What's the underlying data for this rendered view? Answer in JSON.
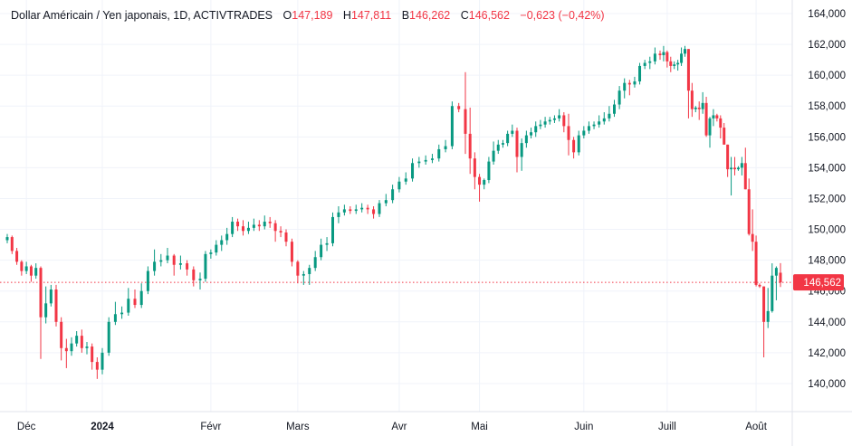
{
  "legend": {
    "symbol": "Dollar Américain / Yen japonais, 1D, ACTIVTRADES",
    "open_label": "O",
    "open": "147,189",
    "high_label": "H",
    "high": "147,811",
    "low_label": "B",
    "low": "146,262",
    "close_label": "C",
    "close": "146,562",
    "change": "−0,623 (−0,42%)"
  },
  "colors": {
    "up": "#089981",
    "down": "#f23645",
    "grid": "#f0f3fa",
    "text": "#131722"
  },
  "chart_data": {
    "type": "candlestick",
    "title": "Dollar Américain / Yen japonais, 1D, ACTIVTRADES",
    "ylim": [
      139,
      164.5
    ],
    "y_ticks": [
      "164,000",
      "162,000",
      "160,000",
      "158,000",
      "156,000",
      "154,000",
      "152,000",
      "150,000",
      "148,000",
      "146,000",
      "144,000",
      "142,000",
      "140,000"
    ],
    "y_tick_values": [
      164,
      162,
      160,
      158,
      156,
      154,
      152,
      150,
      148,
      146,
      144,
      142,
      140
    ],
    "x_ticks": [
      "Déc",
      "2024",
      "Févr",
      "Mars",
      "Avr",
      "Mai",
      "Juin",
      "Juill",
      "Août"
    ],
    "x_tick_bold": [
      false,
      true,
      false,
      false,
      false,
      false,
      false,
      false,
      false
    ],
    "grid": true,
    "last_price": 146.562,
    "last_price_label": "146,562",
    "candles_ohlc": [
      [
        149.3,
        149.7,
        149.1,
        149.5
      ],
      [
        149.5,
        149.6,
        148.4,
        148.6
      ],
      [
        148.6,
        148.8,
        147.7,
        147.9
      ],
      [
        147.9,
        148.0,
        147.0,
        147.3
      ],
      [
        147.3,
        147.9,
        147.1,
        147.6
      ],
      [
        147.6,
        147.7,
        146.6,
        147.0
      ],
      [
        147.0,
        147.8,
        146.8,
        147.5
      ],
      [
        147.5,
        147.6,
        141.6,
        144.3
      ],
      [
        144.3,
        146.3,
        143.9,
        145.2
      ],
      [
        145.2,
        146.4,
        145.0,
        146.1
      ],
      [
        146.1,
        146.4,
        143.7,
        144.0
      ],
      [
        144.0,
        144.3,
        141.5,
        142.3
      ],
      [
        142.3,
        142.9,
        141.0,
        142.1
      ],
      [
        142.1,
        143.0,
        141.8,
        142.6
      ],
      [
        142.6,
        143.4,
        142.4,
        143.1
      ],
      [
        143.1,
        143.5,
        142.0,
        142.3
      ],
      [
        142.3,
        142.7,
        141.9,
        142.4
      ],
      [
        142.4,
        142.6,
        140.9,
        141.4
      ],
      [
        141.4,
        141.7,
        140.3,
        140.9
      ],
      [
        140.9,
        142.3,
        140.6,
        142.0
      ],
      [
        142.0,
        144.3,
        141.8,
        144.0
      ],
      [
        144.0,
        145.3,
        143.8,
        144.5
      ],
      [
        144.5,
        145.0,
        144.2,
        144.6
      ],
      [
        144.6,
        146.2,
        144.4,
        145.5
      ],
      [
        145.5,
        146.1,
        144.9,
        145.1
      ],
      [
        145.1,
        146.5,
        144.9,
        146.0
      ],
      [
        146.0,
        147.6,
        145.8,
        147.3
      ],
      [
        147.3,
        148.7,
        147.0,
        147.9
      ],
      [
        147.9,
        148.4,
        147.6,
        148.0
      ],
      [
        148.0,
        148.8,
        147.8,
        148.3
      ],
      [
        148.3,
        148.4,
        147.0,
        147.7
      ],
      [
        147.7,
        148.3,
        147.4,
        147.8
      ],
      [
        147.8,
        148.0,
        147.0,
        147.4
      ],
      [
        147.4,
        147.6,
        146.3,
        146.7
      ],
      [
        146.7,
        147.2,
        146.1,
        146.8
      ],
      [
        146.8,
        148.6,
        146.6,
        148.4
      ],
      [
        148.4,
        148.7,
        148.1,
        148.5
      ],
      [
        148.5,
        149.3,
        148.3,
        149.0
      ],
      [
        149.0,
        149.6,
        148.6,
        149.3
      ],
      [
        149.3,
        150.1,
        149.0,
        149.7
      ],
      [
        149.7,
        150.8,
        149.5,
        150.5
      ],
      [
        150.5,
        150.7,
        149.9,
        150.2
      ],
      [
        150.2,
        150.6,
        149.6,
        149.9
      ],
      [
        149.9,
        150.5,
        149.7,
        150.1
      ],
      [
        150.1,
        150.7,
        149.9,
        150.3
      ],
      [
        150.3,
        150.6,
        149.9,
        150.2
      ],
      [
        150.2,
        150.9,
        150.0,
        150.5
      ],
      [
        150.5,
        150.8,
        150.1,
        150.4
      ],
      [
        150.4,
        150.6,
        149.2,
        149.9
      ],
      [
        149.9,
        150.2,
        149.5,
        149.8
      ],
      [
        149.8,
        150.0,
        148.9,
        149.2
      ],
      [
        149.2,
        149.4,
        147.6,
        147.9
      ],
      [
        147.9,
        148.0,
        146.5,
        147.0
      ],
      [
        147.0,
        147.3,
        146.4,
        147.1
      ],
      [
        147.1,
        147.7,
        146.4,
        147.5
      ],
      [
        147.5,
        148.6,
        147.3,
        148.2
      ],
      [
        148.2,
        149.4,
        148.0,
        149.0
      ],
      [
        149.0,
        149.5,
        148.6,
        149.1
      ],
      [
        149.1,
        151.1,
        148.9,
        150.8
      ],
      [
        150.8,
        151.5,
        150.4,
        151.1
      ],
      [
        151.1,
        151.6,
        150.9,
        151.3
      ],
      [
        151.3,
        151.5,
        151.0,
        151.2
      ],
      [
        151.2,
        151.6,
        151.0,
        151.3
      ],
      [
        151.3,
        151.7,
        151.1,
        151.4
      ],
      [
        151.4,
        151.6,
        151.0,
        151.3
      ],
      [
        151.3,
        151.5,
        150.7,
        151.0
      ],
      [
        151.0,
        151.9,
        150.8,
        151.7
      ],
      [
        151.7,
        152.3,
        151.5,
        151.9
      ],
      [
        151.9,
        152.9,
        151.7,
        152.6
      ],
      [
        152.6,
        153.4,
        152.4,
        153.1
      ],
      [
        153.1,
        153.7,
        152.9,
        153.3
      ],
      [
        153.3,
        154.6,
        153.1,
        154.3
      ],
      [
        154.3,
        154.7,
        154.0,
        154.4
      ],
      [
        154.4,
        154.8,
        154.2,
        154.5
      ],
      [
        154.5,
        154.9,
        154.3,
        154.6
      ],
      [
        154.6,
        155.5,
        154.4,
        155.2
      ],
      [
        155.2,
        155.8,
        155.0,
        155.4
      ],
      [
        155.4,
        158.3,
        155.2,
        158.0
      ],
      [
        158.0,
        158.2,
        157.6,
        157.8
      ],
      [
        157.8,
        160.2,
        154.9,
        156.2
      ],
      [
        156.2,
        157.9,
        153.6,
        154.6
      ],
      [
        154.6,
        155.0,
        152.6,
        153.4
      ],
      [
        153.4,
        153.6,
        151.8,
        152.9
      ],
      [
        152.9,
        153.3,
        152.6,
        153.2
      ],
      [
        153.2,
        154.7,
        153.0,
        154.4
      ],
      [
        154.4,
        155.7,
        154.2,
        155.1
      ],
      [
        155.1,
        155.8,
        154.9,
        155.5
      ],
      [
        155.5,
        155.8,
        155.3,
        155.6
      ],
      [
        155.6,
        156.4,
        155.4,
        156.2
      ],
      [
        156.2,
        156.8,
        156.0,
        156.4
      ],
      [
        156.4,
        156.6,
        153.7,
        154.7
      ],
      [
        154.7,
        155.9,
        153.8,
        155.6
      ],
      [
        155.6,
        156.4,
        155.3,
        156.1
      ],
      [
        156.1,
        156.6,
        155.9,
        156.3
      ],
      [
        156.3,
        157.0,
        156.0,
        156.7
      ],
      [
        156.7,
        157.1,
        156.5,
        156.8
      ],
      [
        156.8,
        157.3,
        156.6,
        157.0
      ],
      [
        157.0,
        157.3,
        156.8,
        157.1
      ],
      [
        157.1,
        157.4,
        156.9,
        157.2
      ],
      [
        157.2,
        157.8,
        157.0,
        157.4
      ],
      [
        157.4,
        157.6,
        156.3,
        156.7
      ],
      [
        156.7,
        157.5,
        154.8,
        155.8
      ],
      [
        155.8,
        156.0,
        154.6,
        155.0
      ],
      [
        155.0,
        156.4,
        154.8,
        156.1
      ],
      [
        156.1,
        156.7,
        155.9,
        156.4
      ],
      [
        156.4,
        157.0,
        156.2,
        156.7
      ],
      [
        156.7,
        157.0,
        156.5,
        156.8
      ],
      [
        156.8,
        157.4,
        156.6,
        157.0
      ],
      [
        157.0,
        157.6,
        156.8,
        157.2
      ],
      [
        157.2,
        158.0,
        157.0,
        157.5
      ],
      [
        157.5,
        158.4,
        157.3,
        158.1
      ],
      [
        158.1,
        159.3,
        157.8,
        159.0
      ],
      [
        159.0,
        159.8,
        158.5,
        159.5
      ],
      [
        159.5,
        159.7,
        158.7,
        159.4
      ],
      [
        159.4,
        159.9,
        159.2,
        159.6
      ],
      [
        159.6,
        160.8,
        159.4,
        160.6
      ],
      [
        160.6,
        161.0,
        160.4,
        160.8
      ],
      [
        160.8,
        161.2,
        160.4,
        160.9
      ],
      [
        160.9,
        161.8,
        160.7,
        161.4
      ],
      [
        161.4,
        161.6,
        161.0,
        161.3
      ],
      [
        161.3,
        161.9,
        160.9,
        161.5
      ],
      [
        161.5,
        161.6,
        160.5,
        160.9
      ],
      [
        160.9,
        161.2,
        160.2,
        160.6
      ],
      [
        160.6,
        160.9,
        160.4,
        160.7
      ],
      [
        160.7,
        161.0,
        160.3,
        160.8
      ],
      [
        160.8,
        161.8,
        160.6,
        161.4
      ],
      [
        161.4,
        161.9,
        161.2,
        161.7
      ],
      [
        161.7,
        161.7,
        157.2,
        159.0
      ],
      [
        159.0,
        159.5,
        157.3,
        157.8
      ],
      [
        157.8,
        158.0,
        157.6,
        157.9
      ],
      [
        157.9,
        158.3,
        157.1,
        157.8
      ],
      [
        157.8,
        158.9,
        157.5,
        158.2
      ],
      [
        158.2,
        158.6,
        156.0,
        156.1
      ],
      [
        156.1,
        157.3,
        155.3,
        157.2
      ],
      [
        157.2,
        157.8,
        156.7,
        157.4
      ],
      [
        157.4,
        157.5,
        157.0,
        157.2
      ],
      [
        157.2,
        157.4,
        155.9,
        156.6
      ],
      [
        156.6,
        156.9,
        155.5,
        155.5
      ],
      [
        155.5,
        155.5,
        153.4,
        153.9
      ],
      [
        153.9,
        154.7,
        152.2,
        154.0
      ],
      [
        154.0,
        154.7,
        153.5,
        153.9
      ],
      [
        153.9,
        154.1,
        153.8,
        154.0
      ],
      [
        154.0,
        154.7,
        153.5,
        154.3
      ],
      [
        154.3,
        155.3,
        152.6,
        152.6
      ],
      [
        152.6,
        153.3,
        149.6,
        149.7
      ],
      [
        149.7,
        151.3,
        148.6,
        149.2
      ],
      [
        149.2,
        149.6,
        146.3,
        146.4
      ],
      [
        146.4,
        146.5,
        146.2,
        146.3
      ],
      [
        146.3,
        146.3,
        141.7,
        144.0
      ],
      [
        144.0,
        146.2,
        143.6,
        144.7
      ],
      [
        144.7,
        147.8,
        144.6,
        147.0
      ],
      [
        147.0,
        147.6,
        145.4,
        147.5
      ],
      [
        147.189,
        147.811,
        146.262,
        146.562
      ]
    ]
  }
}
